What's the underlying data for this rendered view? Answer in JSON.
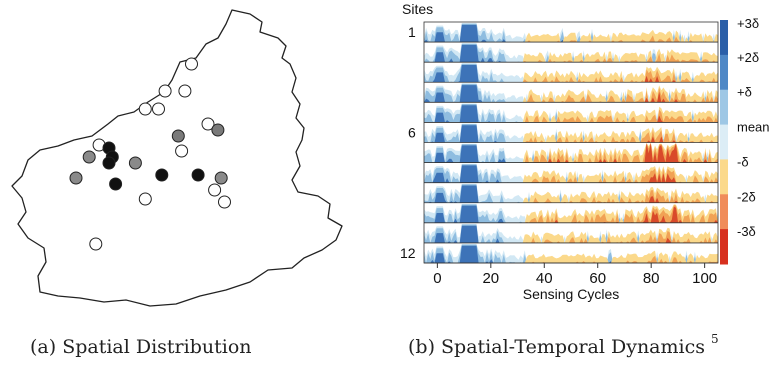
{
  "captions": {
    "a": "(a) Spatial Distribution",
    "b": "(b) Spatial-Temporal Dynamics",
    "b_footnote": "5"
  },
  "chart_data": [
    {
      "type": "scatter",
      "title": "",
      "description_visible": "",
      "points": [
        {
          "x": 0.55,
          "y": 0.82,
          "shade": "white"
        },
        {
          "x": 0.47,
          "y": 0.73,
          "shade": "white"
        },
        {
          "x": 0.53,
          "y": 0.73,
          "shade": "white"
        },
        {
          "x": 0.41,
          "y": 0.67,
          "shade": "white"
        },
        {
          "x": 0.45,
          "y": 0.67,
          "shade": "white"
        },
        {
          "x": 0.6,
          "y": 0.62,
          "shade": "white"
        },
        {
          "x": 0.63,
          "y": 0.6,
          "shade": "dark-gray"
        },
        {
          "x": 0.51,
          "y": 0.58,
          "shade": "dark-gray"
        },
        {
          "x": 0.27,
          "y": 0.55,
          "shade": "white"
        },
        {
          "x": 0.3,
          "y": 0.54,
          "shade": "black"
        },
        {
          "x": 0.24,
          "y": 0.51,
          "shade": "gray"
        },
        {
          "x": 0.31,
          "y": 0.51,
          "shade": "black"
        },
        {
          "x": 0.3,
          "y": 0.49,
          "shade": "black"
        },
        {
          "x": 0.38,
          "y": 0.49,
          "shade": "gray"
        },
        {
          "x": 0.52,
          "y": 0.53,
          "shade": "white"
        },
        {
          "x": 0.2,
          "y": 0.44,
          "shade": "gray"
        },
        {
          "x": 0.46,
          "y": 0.45,
          "shade": "black"
        },
        {
          "x": 0.32,
          "y": 0.42,
          "shade": "black"
        },
        {
          "x": 0.57,
          "y": 0.45,
          "shade": "black"
        },
        {
          "x": 0.64,
          "y": 0.44,
          "shade": "gray"
        },
        {
          "x": 0.62,
          "y": 0.4,
          "shade": "white"
        },
        {
          "x": 0.41,
          "y": 0.37,
          "shade": "white"
        },
        {
          "x": 0.65,
          "y": 0.36,
          "shade": "white"
        },
        {
          "x": 0.26,
          "y": 0.22,
          "shade": "white"
        }
      ]
    },
    {
      "type": "area",
      "title": "",
      "ylabel": "Sites",
      "xlabel": "Sensing Cycles",
      "xlim": [
        -5,
        105
      ],
      "xticks": [
        0,
        20,
        40,
        60,
        80,
        100
      ],
      "site_labels": [
        {
          "row": 1,
          "label": "1"
        },
        {
          "row": 6,
          "label": "6"
        },
        {
          "row": 12,
          "label": "12"
        }
      ],
      "n_rows": 12,
      "colorbar": {
        "labels": [
          "+3δ",
          "+2δ",
          "+δ",
          "mean",
          "-δ",
          "-2δ",
          "-3δ"
        ],
        "colors": [
          "#2b5fa8",
          "#4f88c6",
          "#9ec7e5",
          "#dcedf6",
          "#fbd98b",
          "#f08c5a",
          "#d7301f"
        ]
      },
      "colors": {
        "above1": "#d2e8f4",
        "above2": "#8fbde0",
        "above3": "#3d73b8",
        "below1": "#fbd98b",
        "below2": "#f1a255",
        "below3": "#d94a2a"
      }
    }
  ]
}
